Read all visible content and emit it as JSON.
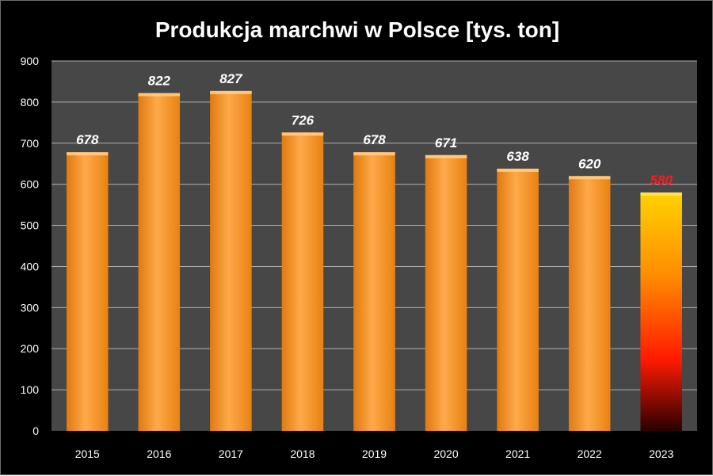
{
  "chart_data": {
    "type": "bar",
    "title": "Produkcja marchwi w Polsce [tys. ton]",
    "categories": [
      "2015",
      "2016",
      "2017",
      "2018",
      "2019",
      "2020",
      "2021",
      "2022",
      "2023"
    ],
    "values": [
      678,
      822,
      827,
      726,
      678,
      671,
      638,
      620,
      580
    ],
    "data_labels": [
      "678",
      "822",
      "827",
      "726",
      "678",
      "671",
      "638",
      "620",
      "580"
    ],
    "ylim": [
      0,
      900
    ],
    "yticks": [
      0,
      100,
      200,
      300,
      400,
      500,
      600,
      700,
      800,
      900
    ],
    "ytick_labels": [
      "0",
      "100",
      "200",
      "300",
      "400",
      "500",
      "600",
      "700",
      "800",
      "900"
    ],
    "grid": true,
    "xlabel": "",
    "ylabel": "",
    "colors": {
      "background": "#000000",
      "plot_area": "#474747",
      "grid": "#b0b0b0",
      "bar": "#f7941d",
      "bar_highlight": "#ffb347",
      "label": "#ffffff",
      "highlight_label": "#ff1a1a",
      "highlight_bar_top": "#ffd200",
      "highlight_bar_mid": "#ff1a00",
      "highlight_bar_bottom": "#2a0000"
    },
    "highlight_index": 8
  }
}
